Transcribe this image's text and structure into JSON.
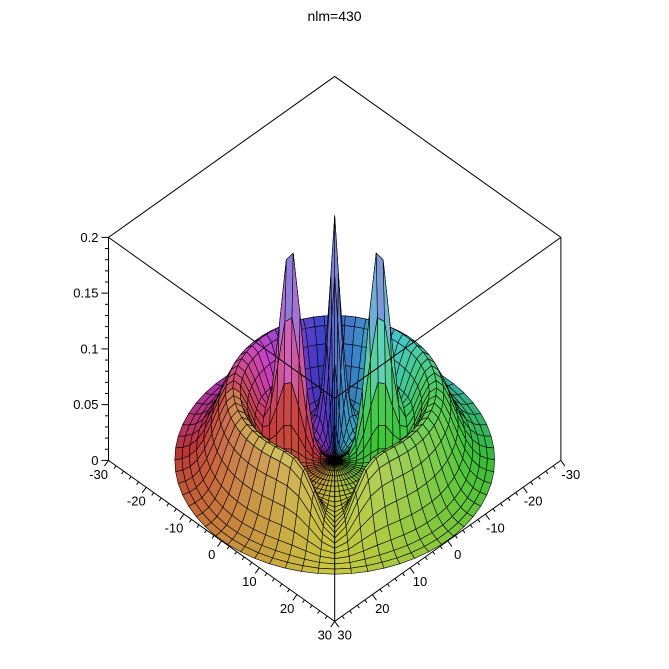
{
  "chart_data": {
    "type": "surface",
    "title": "nlm=430",
    "xlabel": "",
    "ylabel": "",
    "zlabel": "",
    "background": "#ffffff",
    "grid": "mesh",
    "legend": "none",
    "x_range": [
      -30,
      30
    ],
    "y_range": [
      -30,
      30
    ],
    "z_range": [
      0,
      0.2
    ],
    "x_ticks": [
      -30,
      -20,
      -10,
      0,
      10,
      20,
      30
    ],
    "y_ticks": [
      -30,
      -20,
      -10,
      0,
      10,
      20,
      30
    ],
    "z_ticks": [
      0,
      0.05,
      0.1,
      0.15,
      0.2
    ],
    "x_tick_labels": [
      "-30",
      "-20",
      "-10",
      "0",
      "10",
      "20",
      "30"
    ],
    "y_tick_labels": [
      "-30",
      "-20",
      "-10",
      "0",
      "10",
      "20",
      "30"
    ],
    "z_tick_labels": [
      "0",
      "0.05",
      "0.1",
      "0.15",
      "0.2"
    ],
    "minor_ticks_per_interval": 4,
    "domain": {
      "shape": "disk",
      "radius": 30,
      "grid_rings": 22,
      "grid_sectors": 60,
      "grid_angle_offset_deg": 3
    },
    "surface": {
      "description": "Probability density surface for hydrogen state n=4 l=3 m=0: three sharp peaks (max ~0.2) arranged around the vertical axis at radius ~7-9, a low annular mound (~0.065) at radius ~19, zero at the center and at the front notch facing the viewer",
      "peaks": [
        {
          "azimuth_deg": -90,
          "radius": 7.1,
          "height": 0.198,
          "angular_sigma_deg": 13,
          "radial_sigma": 3.0
        },
        {
          "azimuth_deg": -19,
          "radius": 8.7,
          "height": 0.186,
          "angular_sigma_deg": 13,
          "radial_sigma": 3.0
        },
        {
          "azimuth_deg": -161,
          "radius": 8.7,
          "height": 0.186,
          "angular_sigma_deg": 13,
          "radial_sigma": 3.0
        }
      ],
      "mound": {
        "radius": 19,
        "radial_sigma": 5.0,
        "height": 0.065,
        "front_notch_azimuth_deg": 90,
        "notch_sigma_deg": 14
      }
    },
    "colors": {
      "mesh_line": "#000000",
      "box_line": "#000000",
      "text": "#000000",
      "hue_by_azimuth_stops": [
        [
          180,
          5
        ],
        [
          90,
          60
        ],
        [
          0,
          120
        ],
        [
          -90,
          225
        ],
        [
          -180,
          365
        ]
      ],
      "peak_hue": 237,
      "saturation_pct": 56,
      "sample_left_mound": "#c86a50",
      "sample_right_mound": "#6abf5a",
      "sample_left_peak_top": "#b598e2",
      "sample_center_peak_top": "#95a0e0",
      "sample_right_peak_top": "#90b4e4"
    }
  }
}
